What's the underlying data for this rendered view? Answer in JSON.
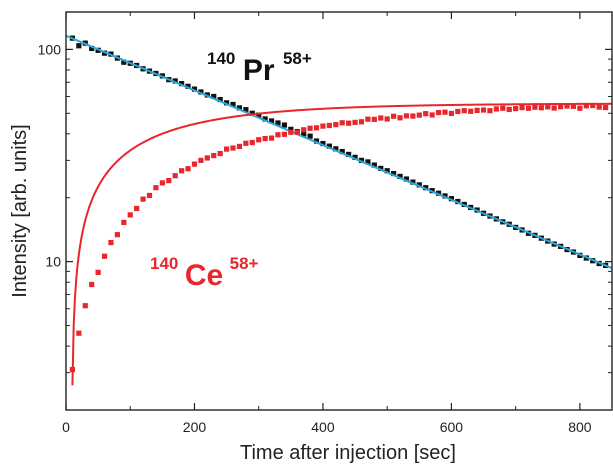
{
  "chart_data": {
    "type": "scatter",
    "title": "",
    "xlabel": "Time after injection [sec]",
    "ylabel": "Intensity [arb. units]",
    "xlim": [
      0,
      850
    ],
    "ylim": [
      2,
      150
    ],
    "y_scale": "log",
    "x_ticks": [
      0,
      200,
      400,
      600,
      800
    ],
    "x_tick_labels": [
      "0",
      "200",
      "400",
      "600",
      "800"
    ],
    "y_ticks": [
      10,
      100
    ],
    "y_tick_labels": [
      "10",
      "100"
    ],
    "grid": false,
    "legend": "none",
    "colors": {
      "pr_points": "#111111",
      "pr_fit": "#2aa7d8",
      "ce_points": "#e8262b",
      "ce_fit": "#e8262b",
      "axes": "#222222"
    },
    "annotations": {
      "pr": {
        "mass": "140",
        "element": "Pr",
        "charge": "58+"
      },
      "ce": {
        "mass": "140",
        "element": "Ce",
        "charge": "58+"
      }
    },
    "series": [
      {
        "label_key": "pr",
        "marker": "square",
        "fit": {
          "model": "exponential_decay",
          "a": 116,
          "tau": 337
        },
        "x": [
          10,
          20,
          30,
          40,
          50,
          60,
          70,
          80,
          90,
          100,
          110,
          120,
          130,
          140,
          150,
          160,
          170,
          180,
          190,
          200,
          210,
          220,
          230,
          240,
          250,
          260,
          270,
          280,
          290,
          300,
          310,
          320,
          330,
          340,
          350,
          360,
          370,
          380,
          390,
          400,
          410,
          420,
          430,
          440,
          450,
          460,
          470,
          480,
          490,
          500,
          510,
          520,
          530,
          540,
          550,
          560,
          570,
          580,
          590,
          600,
          610,
          620,
          630,
          640,
          650,
          660,
          670,
          680,
          690,
          700,
          710,
          720,
          730,
          740,
          750,
          760,
          770,
          780,
          790,
          800,
          810,
          820,
          830,
          840
        ],
        "y": [
          113,
          104,
          107,
          101,
          99,
          96,
          95,
          91,
          87,
          86,
          84,
          81,
          79,
          77,
          75,
          72,
          71,
          69,
          67,
          65,
          63,
          61,
          60,
          58,
          56,
          55,
          53,
          52,
          50,
          49,
          47,
          46,
          45,
          44,
          42,
          41,
          40,
          39,
          37,
          36,
          35,
          34,
          33,
          32,
          31,
          30,
          29.5,
          28.5,
          27.5,
          26.8,
          26,
          25.2,
          24.5,
          23.7,
          23,
          22.3,
          21.6,
          21,
          20.4,
          19.8,
          19.2,
          18.6,
          18,
          17.5,
          16.9,
          16.4,
          15.9,
          15.4,
          15,
          14.5,
          14.1,
          13.6,
          13.3,
          12.9,
          12.5,
          12.1,
          11.8,
          11.4,
          11.1,
          10.7,
          10.4,
          10.1,
          9.8,
          9.6
        ]
      },
      {
        "label_key": "ce",
        "marker": "square",
        "fit": {
          "model": "saturation",
          "a": 55.6,
          "x0": 9,
          "tau": 163,
          "p": 0.6
        },
        "x": [
          10,
          20,
          30,
          40,
          50,
          60,
          70,
          80,
          90,
          100,
          110,
          120,
          130,
          140,
          150,
          160,
          170,
          180,
          190,
          200,
          210,
          220,
          230,
          240,
          250,
          260,
          270,
          280,
          290,
          300,
          310,
          320,
          330,
          340,
          350,
          360,
          370,
          380,
          390,
          400,
          410,
          420,
          430,
          440,
          450,
          460,
          470,
          480,
          490,
          500,
          510,
          520,
          530,
          540,
          550,
          560,
          570,
          580,
          590,
          600,
          610,
          620,
          630,
          640,
          650,
          660,
          670,
          680,
          690,
          700,
          710,
          720,
          730,
          740,
          750,
          760,
          770,
          780,
          790,
          800,
          810,
          820,
          830,
          840
        ],
        "y": [
          3.1,
          4.6,
          6.2,
          7.8,
          8.9,
          10.6,
          12.3,
          13.4,
          15.3,
          16.6,
          17.8,
          19.7,
          20.5,
          22.3,
          23.5,
          24.1,
          25.4,
          26.8,
          27.4,
          28.8,
          30.0,
          30.8,
          31.6,
          32.3,
          33.9,
          34.3,
          34.9,
          36.1,
          36.4,
          37.5,
          38.0,
          38.2,
          39.6,
          39.8,
          40.7,
          40.7,
          41.8,
          42.5,
          42.7,
          43.5,
          43.8,
          44.2,
          45.1,
          44.9,
          45.3,
          45.6,
          46.9,
          46.8,
          47.5,
          47.0,
          48.4,
          47.6,
          48.6,
          48.5,
          49.0,
          49.8,
          49.1,
          50.4,
          50.6,
          49.9,
          51.0,
          51.4,
          51.1,
          51.6,
          51.8,
          51.4,
          52.4,
          52.8,
          52.1,
          52.6,
          53.2,
          52.8,
          53.4,
          53.1,
          53.6,
          52.9,
          53.7,
          54.1,
          53.9,
          52.8,
          54.2,
          54.4,
          53.5,
          53.2
        ]
      }
    ]
  }
}
